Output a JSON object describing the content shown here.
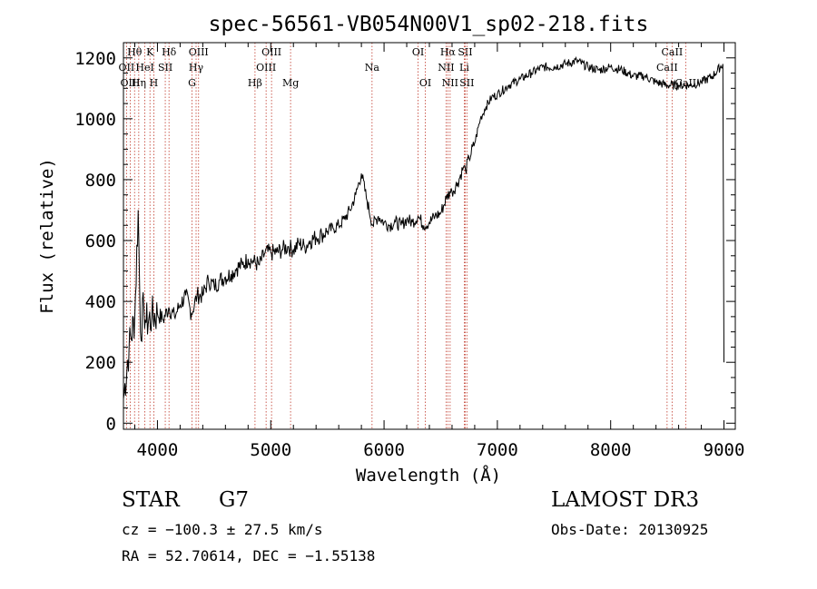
{
  "chart_data": {
    "type": "line",
    "title": "spec-56561-VB054N00V1_sp02-218.fits",
    "xlabel": "Wavelength (Å)",
    "ylabel": "Flux (relative)",
    "xlim": [
      3700,
      9100
    ],
    "ylim": [
      -20,
      1250
    ],
    "x_ticks": [
      4000,
      5000,
      6000,
      7000,
      8000,
      9000
    ],
    "x_tick_labels": [
      "4000",
      "5000",
      "6000",
      "7000",
      "8000",
      "9000"
    ],
    "y_ticks": [
      0,
      200,
      400,
      600,
      800,
      1000,
      1200
    ],
    "y_tick_labels": [
      "0",
      "200",
      "400",
      "600",
      "800",
      "1000",
      "1200"
    ],
    "series": [
      {
        "name": "flux",
        "x": [
          3700,
          3750,
          3800,
          3830,
          3850,
          3880,
          3900,
          3950,
          4000,
          4050,
          4100,
          4150,
          4200,
          4250,
          4300,
          4350,
          4400,
          4450,
          4500,
          4550,
          4600,
          4650,
          4700,
          4750,
          4800,
          4850,
          4900,
          4950,
          5000,
          5050,
          5100,
          5150,
          5200,
          5250,
          5300,
          5350,
          5400,
          5450,
          5500,
          5550,
          5600,
          5650,
          5700,
          5750,
          5800,
          5850,
          5900,
          5950,
          6000,
          6050,
          6100,
          6150,
          6200,
          6250,
          6300,
          6350,
          6400,
          6450,
          6500,
          6550,
          6580,
          6600,
          6650,
          6700,
          6720,
          6750,
          6800,
          6850,
          6900,
          6950,
          7000,
          7100,
          7200,
          7300,
          7400,
          7500,
          7600,
          7700,
          7800,
          7900,
          8000,
          8100,
          8200,
          8300,
          8400,
          8500,
          8600,
          8700,
          8800,
          8900,
          8990,
          9000
        ],
        "y": [
          80,
          250,
          350,
          700,
          300,
          380,
          330,
          350,
          360,
          340,
          380,
          350,
          390,
          420,
          360,
          420,
          420,
          470,
          450,
          470,
          480,
          490,
          510,
          520,
          540,
          530,
          520,
          560,
          560,
          560,
          570,
          580,
          570,
          590,
          580,
          600,
          610,
          620,
          630,
          640,
          650,
          670,
          700,
          750,
          820,
          730,
          650,
          680,
          660,
          650,
          660,
          650,
          670,
          660,
          680,
          650,
          660,
          680,
          690,
          740,
          760,
          760,
          790,
          840,
          830,
          870,
          920,
          1000,
          1040,
          1070,
          1080,
          1110,
          1130,
          1150,
          1170,
          1170,
          1180,
          1190,
          1170,
          1160,
          1170,
          1160,
          1140,
          1140,
          1120,
          1110,
          1110,
          1110,
          1120,
          1140,
          1180,
          200
        ]
      }
    ],
    "line_markers": [
      {
        "label": "Hθ",
        "x": 3798,
        "row": 1
      },
      {
        "label": "K",
        "x": 3934,
        "row": 1
      },
      {
        "label": "Hδ",
        "x": 4102,
        "row": 1
      },
      {
        "label": "OII",
        "x": 3727,
        "row": 2
      },
      {
        "label": "HeI",
        "x": 3889,
        "row": 2
      },
      {
        "label": "SII",
        "x": 4069,
        "row": 2
      },
      {
        "label": "OIII",
        "x": 3760,
        "row": 3
      },
      {
        "label": "Hη",
        "x": 3835,
        "row": 3
      },
      {
        "label": "H",
        "x": 3968,
        "row": 3
      },
      {
        "label": "OIII",
        "x": 4363,
        "row": 1
      },
      {
        "label": "Hγ",
        "x": 4341,
        "row": 2
      },
      {
        "label": "G",
        "x": 4305,
        "row": 3
      },
      {
        "label": "OIII",
        "x": 5007,
        "row": 1
      },
      {
        "label": "OIII",
        "x": 4959,
        "row": 2
      },
      {
        "label": "Hβ",
        "x": 4861,
        "row": 3
      },
      {
        "label": "Mg",
        "x": 5175,
        "row": 3
      },
      {
        "label": "Na",
        "x": 5894,
        "row": 2
      },
      {
        "label": "OI",
        "x": 6300,
        "row": 1
      },
      {
        "label": "OI",
        "x": 6364,
        "row": 3
      },
      {
        "label": "Hα",
        "x": 6563,
        "row": 1
      },
      {
        "label": "SII",
        "x": 6716,
        "row": 1
      },
      {
        "label": "NII",
        "x": 6548,
        "row": 2
      },
      {
        "label": "Li",
        "x": 6708,
        "row": 2
      },
      {
        "label": "NII",
        "x": 6583,
        "row": 3
      },
      {
        "label": "SII",
        "x": 6731,
        "row": 3
      },
      {
        "label": "CaII",
        "x": 8542,
        "row": 1
      },
      {
        "label": "CaII",
        "x": 8498,
        "row": 2
      },
      {
        "label": "CaII",
        "x": 8662,
        "row": 3
      }
    ]
  },
  "info": {
    "object_class": "STAR",
    "subclass": "G7",
    "survey": "LAMOST DR3",
    "redshift": "cz = −100.3 ± 27.5 km/s",
    "obs_date": "Obs-Date: 20130925",
    "coords": "RA =  52.70614, DEC =  −1.55138"
  }
}
